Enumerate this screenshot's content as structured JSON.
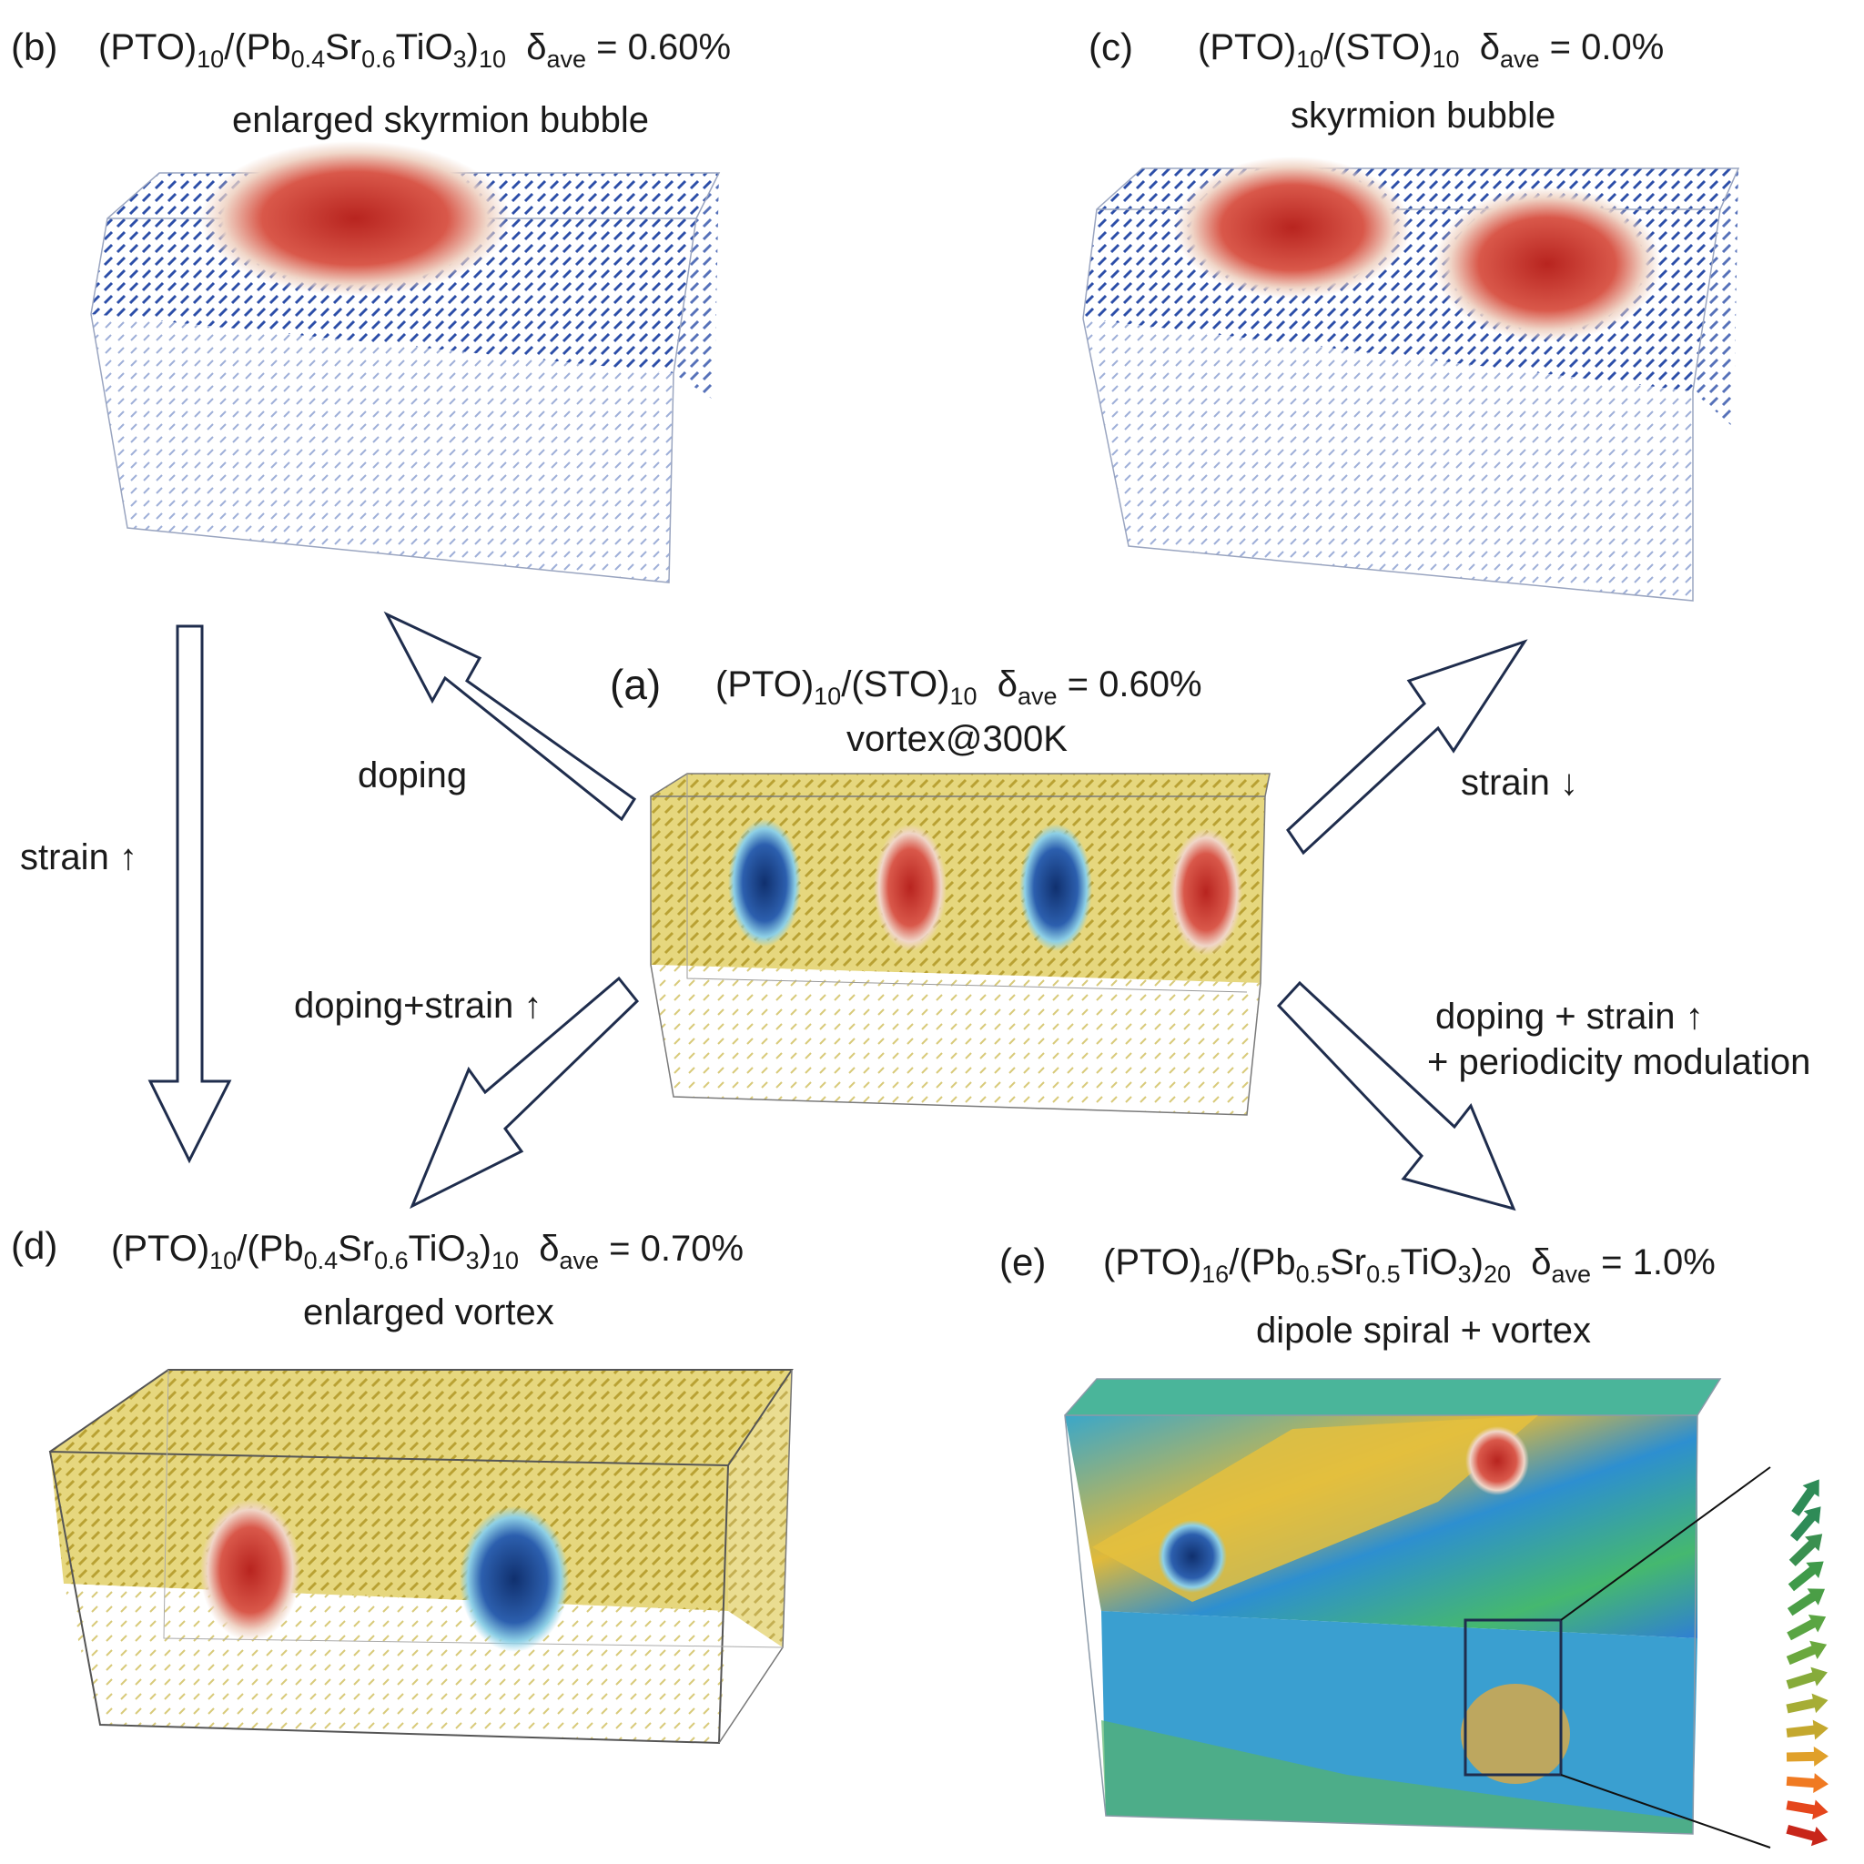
{
  "panels": {
    "a": {
      "letter": "(a)",
      "formula": [
        {
          "t": "(PTO)"
        },
        {
          "s": "10"
        },
        {
          "t": "/(STO)"
        },
        {
          "s": "10"
        },
        {
          "t": "  δ"
        },
        {
          "s": "ave"
        },
        {
          "t": " = 0.60%"
        }
      ],
      "caption": "vortex@300K",
      "color": "#d4c04a"
    },
    "b": {
      "letter": "(b)",
      "formula": [
        {
          "t": "(PTO)"
        },
        {
          "s": "10"
        },
        {
          "t": "/(Pb"
        },
        {
          "s": "0.4"
        },
        {
          "t": "Sr"
        },
        {
          "s": "0.6"
        },
        {
          "t": "TiO"
        },
        {
          "s": "3"
        },
        {
          "t": ")"
        },
        {
          "s": "10"
        },
        {
          "t": "  δ"
        },
        {
          "s": "ave"
        },
        {
          "t": " = 0.60%"
        }
      ],
      "caption": "enlarged skyrmion bubble",
      "color": "#2c4ea8"
    },
    "c": {
      "letter": "(c)",
      "formula": [
        {
          "t": "(PTO)"
        },
        {
          "s": "10"
        },
        {
          "t": "/(STO)"
        },
        {
          "s": "10"
        },
        {
          "t": "  δ"
        },
        {
          "s": "ave"
        },
        {
          "t": " = 0.0%"
        }
      ],
      "caption": "skyrmion bubble",
      "color": "#2c4ea8"
    },
    "d": {
      "letter": "(d)",
      "formula": [
        {
          "t": "(PTO)"
        },
        {
          "s": "10"
        },
        {
          "t": "/(Pb"
        },
        {
          "s": "0.4"
        },
        {
          "t": "Sr"
        },
        {
          "s": "0.6"
        },
        {
          "t": "TiO"
        },
        {
          "s": "3"
        },
        {
          "t": ")"
        },
        {
          "s": "10"
        },
        {
          "t": "  δ"
        },
        {
          "s": "ave"
        },
        {
          "t": " = 0.70%"
        }
      ],
      "caption": "enlarged vortex",
      "color": "#d4c04a"
    },
    "e": {
      "letter": "(e)",
      "formula": [
        {
          "t": "(PTO)"
        },
        {
          "s": "16"
        },
        {
          "t": "/(Pb"
        },
        {
          "s": "0.5"
        },
        {
          "t": "Sr"
        },
        {
          "s": "0.5"
        },
        {
          "t": "TiO"
        },
        {
          "s": "3"
        },
        {
          "t": ")"
        },
        {
          "s": "20"
        },
        {
          "t": "  δ"
        },
        {
          "s": "ave"
        },
        {
          "t": " = 1.0%"
        }
      ],
      "caption": "dipole spiral + vortex"
    }
  },
  "arrows": {
    "doping": "doping",
    "strain_up": "strain ↑",
    "strain_down": "strain ↓",
    "doping_strain": "doping+strain ↑",
    "doping_strain_period_1": "doping + strain ↑",
    "doping_strain_period_2": "+ periodicity modulation"
  },
  "colors": {
    "arrow_outline": "#1f2d4d",
    "vortex_red": "#c8302a",
    "vortex_blue": "#1c3f8c",
    "spiral_green": "#2e8b57"
  }
}
